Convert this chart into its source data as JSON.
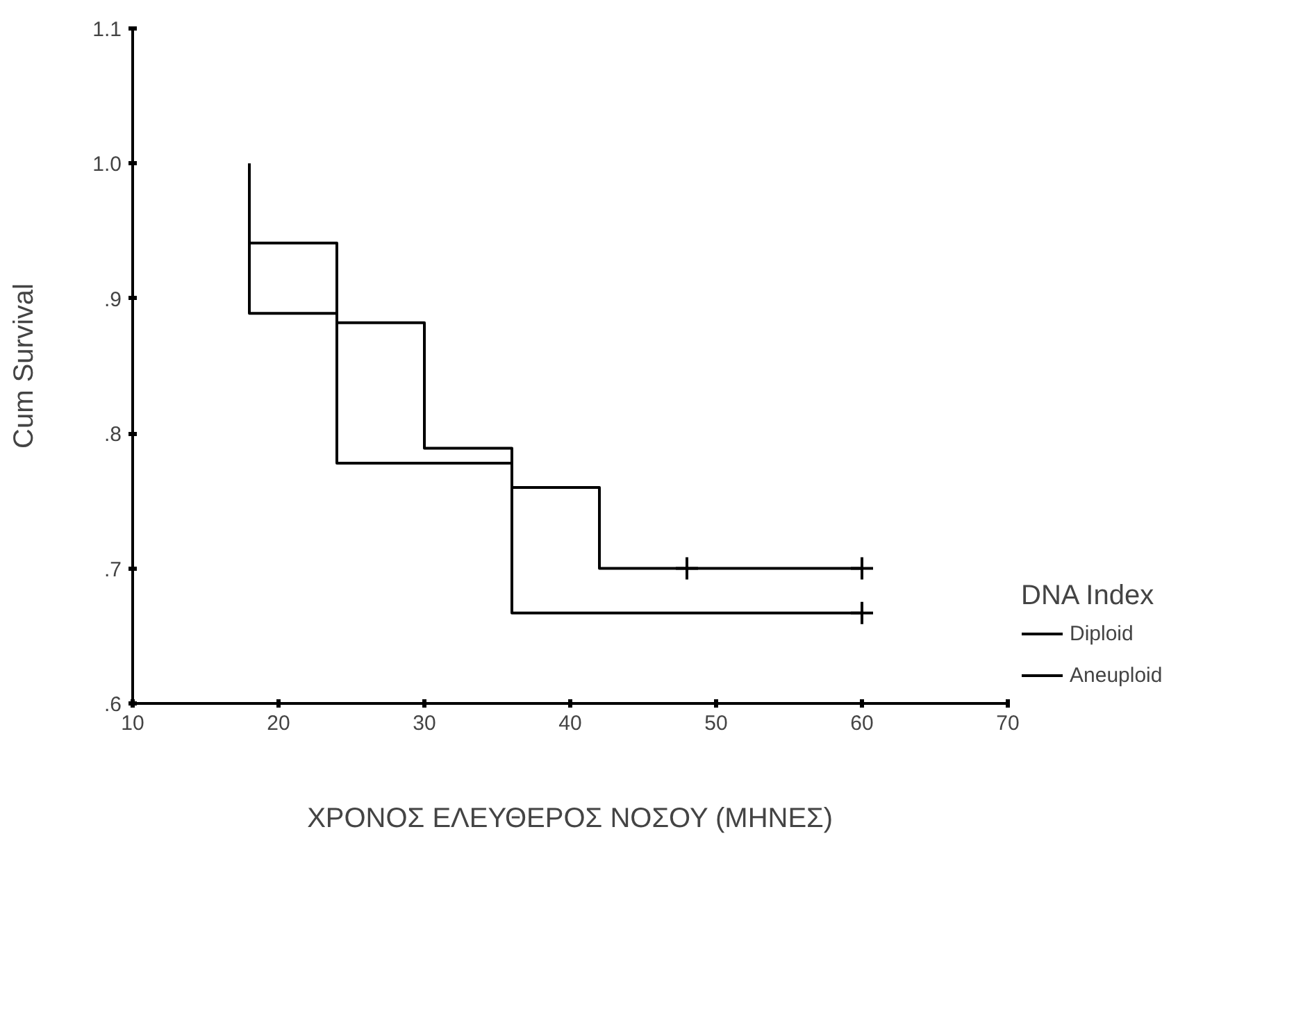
{
  "chart_data": {
    "type": "step",
    "xlabel": "ΧΡΟΝΟΣ ΕΛΕΥΘΕΡΟΣ ΝΟΣΟΥ (ΜΗΝΕΣ)",
    "ylabel": "Cum Survival",
    "legend_title": "DNA Index",
    "xlim": [
      10,
      70
    ],
    "xticks": [
      10,
      20,
      30,
      40,
      50,
      60,
      70
    ],
    "ylim": [
      0.6,
      1.1
    ],
    "yticks": [
      {
        "value": 0.6,
        "label": ".6"
      },
      {
        "value": 0.7,
        "label": ".7"
      },
      {
        "value": 0.8,
        "label": ".8"
      },
      {
        "value": 0.9,
        "label": ".9"
      },
      {
        "value": 1.0,
        "label": "1.0"
      },
      {
        "value": 1.1,
        "label": "1.1"
      }
    ],
    "grid": false,
    "legend": "right",
    "marker": "none",
    "line_style": "solid",
    "series": [
      {
        "name": "Diploid",
        "color": "#000000",
        "x": [
          18,
          18,
          24,
          30,
          36,
          42,
          60
        ],
        "values": [
          1.0,
          0.941,
          0.882,
          0.789,
          0.76,
          0.7,
          0.7
        ]
      },
      {
        "type": "scatter",
        "marker": "cross",
        "color": "#000000",
        "x": [
          48,
          60
        ],
        "values": [
          0.7,
          0.7
        ]
      },
      {
        "name": "Aneuploid",
        "color": "#000000",
        "x": [
          18,
          18,
          24,
          36,
          60
        ],
        "values": [
          1.0,
          0.889,
          0.778,
          0.667,
          0.667
        ]
      },
      {
        "type": "scatter",
        "marker": "cross",
        "color": "#000000",
        "x": [
          60
        ],
        "values": [
          0.667
        ]
      }
    ]
  }
}
